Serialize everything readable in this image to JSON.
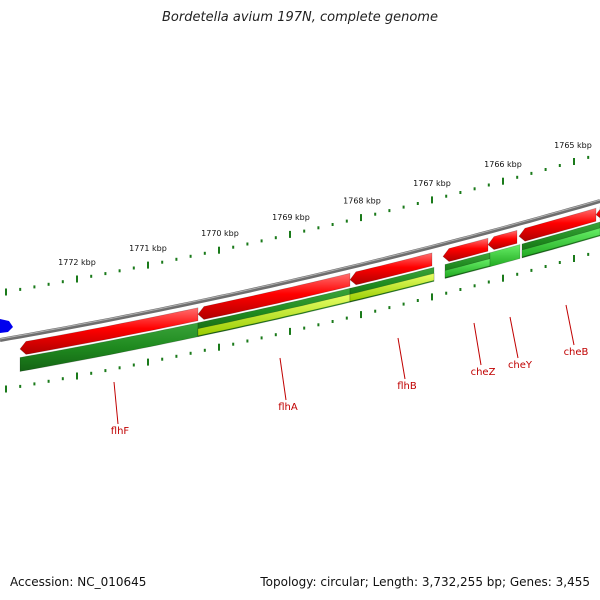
{
  "title": "Bordetella avium 197N, complete genome",
  "footer": {
    "accession": "Accession: NC_010645",
    "topology": "Topology: circular; Length: 3,732,255 bp; Genes: 3,455"
  },
  "ticks": [
    "1772 kbp",
    "1771 kbp",
    "1770 kbp",
    "1769 kbp",
    "1768 kbp",
    "1767 kbp",
    "1766 kbp",
    "1765 kbp"
  ],
  "genes": [
    "flhF",
    "flhA",
    "flhB",
    "cheZ",
    "cheY",
    "cheB"
  ],
  "colors": {
    "forward_gene": "#ee0000",
    "cds_dark": "#1f8a1f",
    "cds_bright": "#33dd33",
    "cds_lime": "#ccff33",
    "backbone": "#808080",
    "tick": "#1a7a1a",
    "label": "#c00000",
    "marker": "#0000ee"
  }
}
